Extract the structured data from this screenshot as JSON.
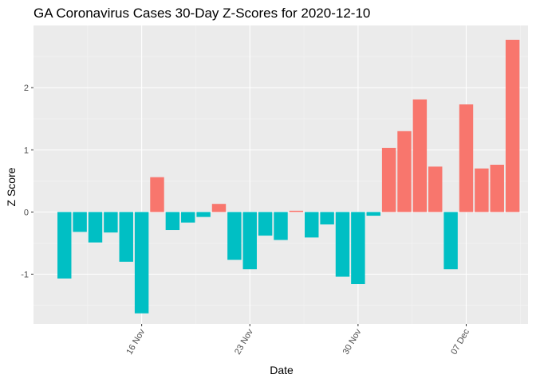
{
  "chart_data": {
    "type": "bar",
    "title": "GA Coronavirus Cases 30-Day Z-Scores for 2020-12-10",
    "xlabel": "Date",
    "ylabel": "Z Score",
    "dates": [
      "2020-11-11",
      "2020-11-12",
      "2020-11-13",
      "2020-11-14",
      "2020-11-15",
      "2020-11-16",
      "2020-11-17",
      "2020-11-18",
      "2020-11-19",
      "2020-11-20",
      "2020-11-21",
      "2020-11-22",
      "2020-11-23",
      "2020-11-24",
      "2020-11-25",
      "2020-11-26",
      "2020-11-27",
      "2020-11-28",
      "2020-11-29",
      "2020-11-30",
      "2020-12-01",
      "2020-12-02",
      "2020-12-03",
      "2020-12-04",
      "2020-12-05",
      "2020-12-06",
      "2020-12-07",
      "2020-12-08",
      "2020-12-09",
      "2020-12-10"
    ],
    "values": [
      -1.07,
      -0.32,
      -0.49,
      -0.33,
      -0.8,
      -1.63,
      0.56,
      -0.29,
      -0.17,
      -0.08,
      0.13,
      -0.77,
      -0.92,
      -0.38,
      -0.45,
      0.02,
      -0.41,
      -0.2,
      -1.04,
      -1.16,
      -0.06,
      1.03,
      1.3,
      1.81,
      0.73,
      -0.92,
      1.73,
      0.7,
      0.76,
      2.77
    ],
    "x_ticks": [
      {
        "date": "2020-11-16",
        "label": "16 Nov"
      },
      {
        "date": "2020-11-23",
        "label": "23 Nov"
      },
      {
        "date": "2020-11-30",
        "label": "30 Nov"
      },
      {
        "date": "2020-12-07",
        "label": "07 Dec"
      }
    ],
    "y_ticks": [
      -1,
      0,
      1,
      2
    ],
    "y_tick_labels": [
      "-1",
      "0",
      "1",
      "2"
    ],
    "ylim": [
      -1.8,
      3.0
    ],
    "xlim": [
      "2020-11-09",
      "2020-12-11"
    ],
    "grid": true,
    "legend": "none",
    "colors": {
      "positive": "#F8766D",
      "negative": "#00BFC4",
      "panel": "#EBEBEB",
      "grid_major": "#FFFFFF",
      "grid_minor": "#F5F5F5"
    }
  }
}
